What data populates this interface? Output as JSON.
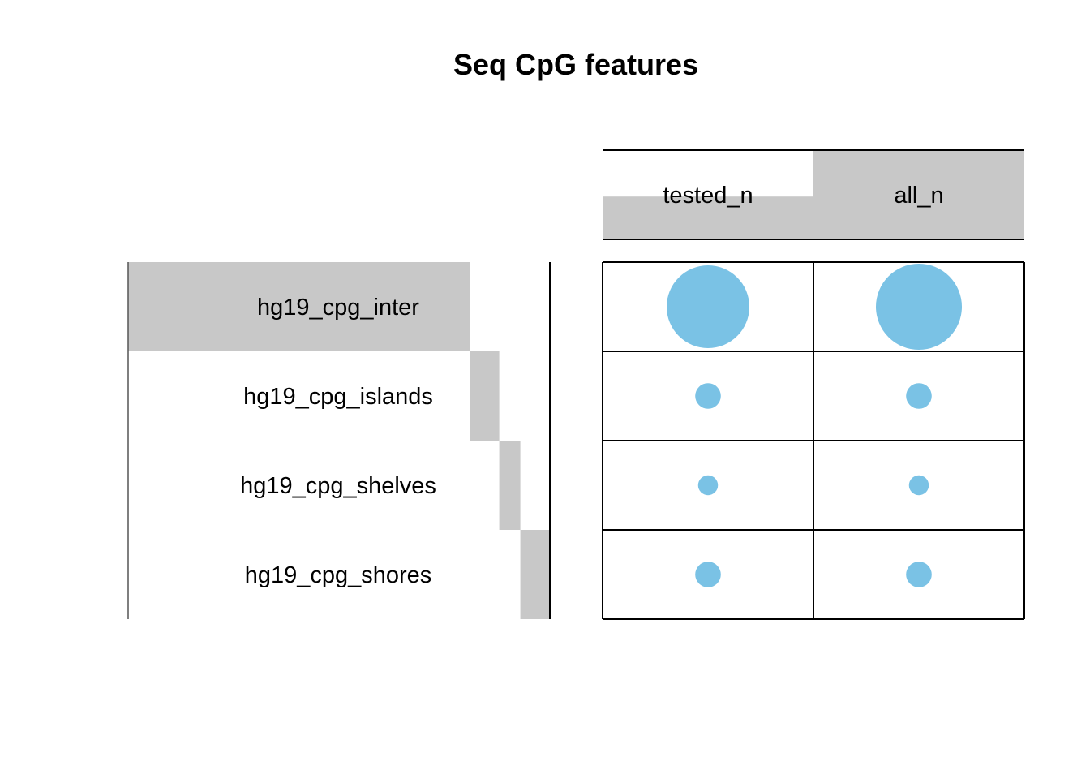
{
  "chart_data": {
    "type": "heatmap",
    "title": "Seq CpG features",
    "rows": [
      "hg19_cpg_inter",
      "hg19_cpg_islands",
      "hg19_cpg_shelves",
      "hg19_cpg_shores"
    ],
    "columns": [
      "tested_n",
      "all_n"
    ],
    "cell_marker": "circle (size proportional to value)",
    "values": [
      [
        1.0,
        1.0
      ],
      [
        0.31,
        0.31
      ],
      [
        0.24,
        0.24
      ],
      [
        0.31,
        0.31
      ]
    ],
    "row_bar_values": [
      0.81,
      0.88,
      0.93,
      1.0
    ],
    "column_bar_values": [
      0.48,
      1.0
    ],
    "colors": {
      "marker": "#7AC2E5",
      "bar": "#C8C8C8",
      "grid": "#000000"
    }
  }
}
